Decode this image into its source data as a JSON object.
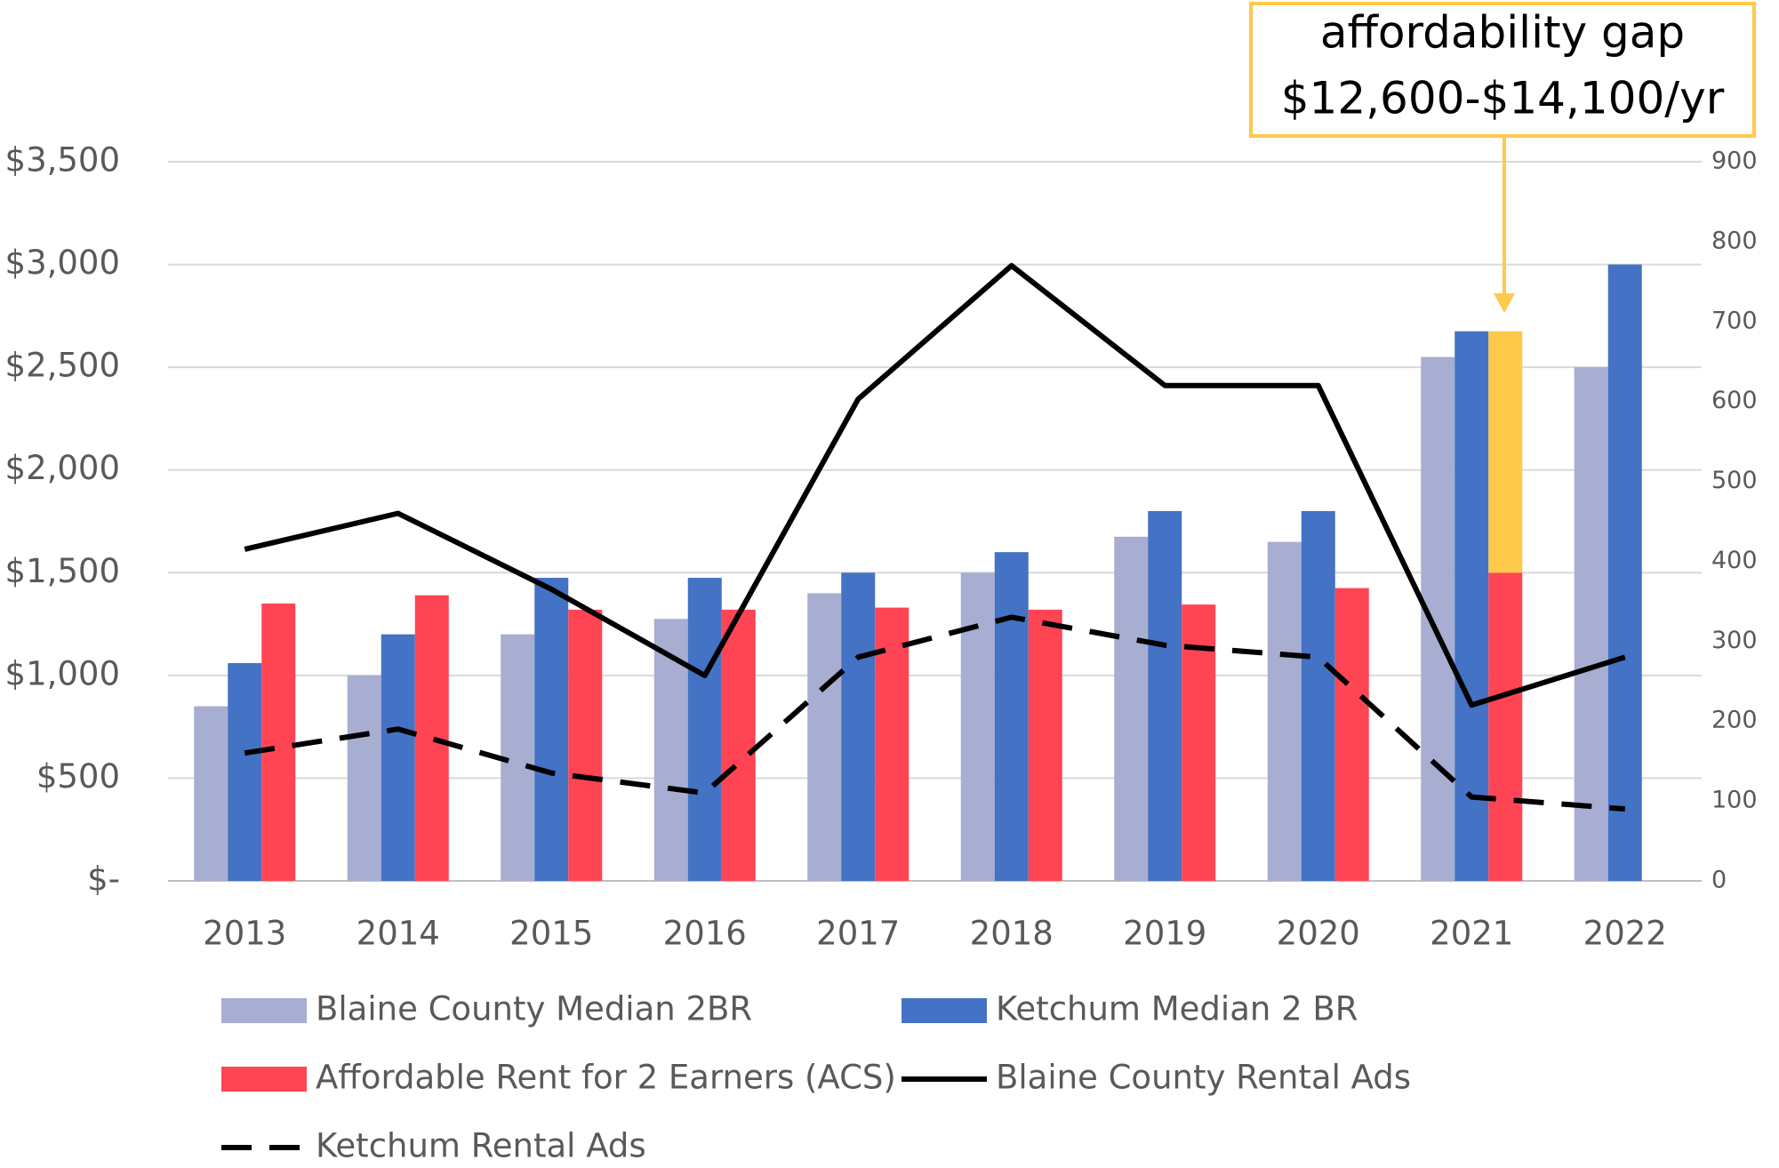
{
  "chart_data": {
    "type": "bar",
    "categories": [
      "2013",
      "2014",
      "2015",
      "2016",
      "2017",
      "2018",
      "2019",
      "2020",
      "2021",
      "2022"
    ],
    "series": [
      {
        "name": "Blaine County Median 2BR",
        "type": "bar",
        "color": "#a7aed1",
        "values": [
          850,
          1000,
          1200,
          1275,
          1400,
          1500,
          1675,
          1650,
          2550,
          2500
        ]
      },
      {
        "name": "Ketchum Median 2 BR",
        "type": "bar",
        "color": "#4472c4",
        "values": [
          1060,
          1200,
          1475,
          1475,
          1500,
          1600,
          1800,
          1800,
          2675,
          3000
        ]
      },
      {
        "name": "Affordable Rent for 2 Earners (ACS)",
        "type": "bar",
        "color": "#ff4554",
        "values": [
          1350,
          1390,
          1320,
          1320,
          1330,
          1320,
          1345,
          1425,
          1500,
          null
        ]
      },
      {
        "name": "Blaine County Rental Ads",
        "type": "line",
        "color": "#000000",
        "axis": "y2",
        "values": [
          415,
          460,
          365,
          257,
          603,
          770,
          620,
          620,
          220,
          280
        ]
      },
      {
        "name": "Ketchum Rental Ads",
        "type": "line",
        "dashed": true,
        "color": "#000000",
        "axis": "y2",
        "values": [
          160,
          190,
          135,
          110,
          280,
          330,
          295,
          280,
          105,
          90
        ]
      }
    ],
    "gap": {
      "category": "2021",
      "value": 1175,
      "color": "#ffc94a",
      "lines": [
        "affordability gap",
        "$12,600-$14,100/yr"
      ]
    },
    "ylim": [
      0,
      3500
    ],
    "yticks": [
      {
        "value": 0,
        "label": "$-"
      },
      {
        "value": 500,
        "label": "$500"
      },
      {
        "value": 1000,
        "label": "$1,000"
      },
      {
        "value": 1500,
        "label": "$1,500"
      },
      {
        "value": 2000,
        "label": "$2,000"
      },
      {
        "value": 2500,
        "label": "$2,500"
      },
      {
        "value": 3000,
        "label": "$3,000"
      },
      {
        "value": 3500,
        "label": "$3,500"
      }
    ],
    "y2lim": [
      0,
      900
    ],
    "y2ticks": [
      0,
      100,
      200,
      300,
      400,
      500,
      600,
      700,
      800,
      900
    ],
    "grid": true
  }
}
